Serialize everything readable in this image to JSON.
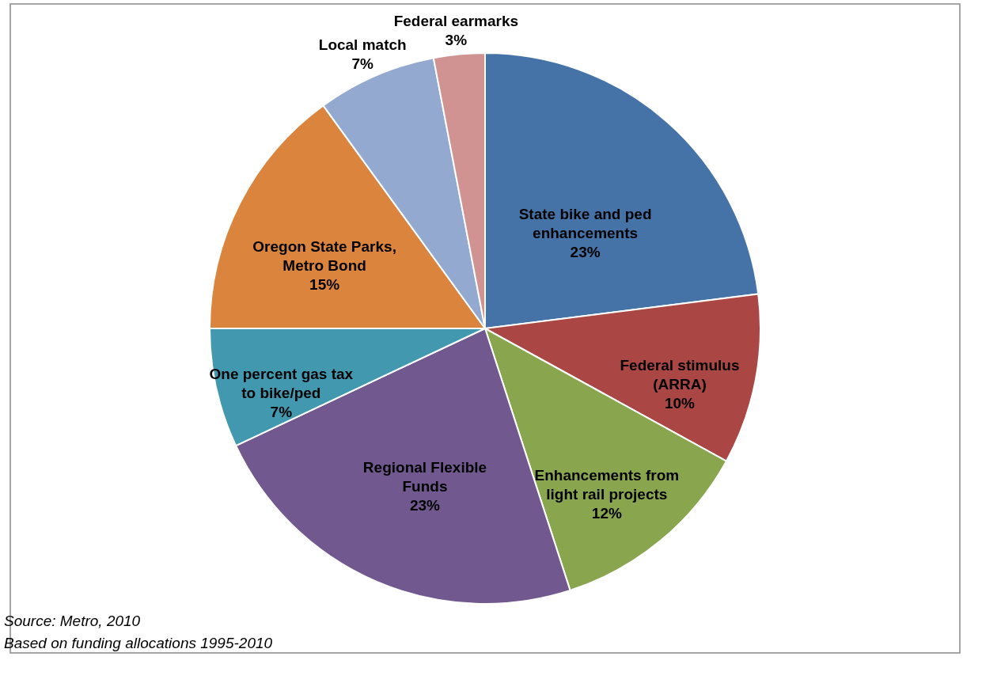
{
  "chart_data": {
    "type": "pie",
    "categories": [
      "State bike and ped enhancements",
      "Federal stimulus (ARRA)",
      "Enhancements from light rail projects",
      "Regional Flexible Funds",
      "One percent gas tax to bike/ped",
      "Oregon State Parks, Metro Bond",
      "Local match",
      "Federal earmarks"
    ],
    "values": [
      23,
      10,
      12,
      23,
      7,
      15,
      7,
      3
    ],
    "value_labels": [
      "23%",
      "10%",
      "12%",
      "23%",
      "7%",
      "15%",
      "7%",
      "3%"
    ],
    "colors": [
      "#4572a7",
      "#aa4643",
      "#89a54e",
      "#71588f",
      "#4198af",
      "#db843d",
      "#93a9cf",
      "#d19392"
    ],
    "legend": false,
    "annotations": [
      "Source: Metro, 2010",
      "Based on funding allocations 1995-2010"
    ]
  }
}
